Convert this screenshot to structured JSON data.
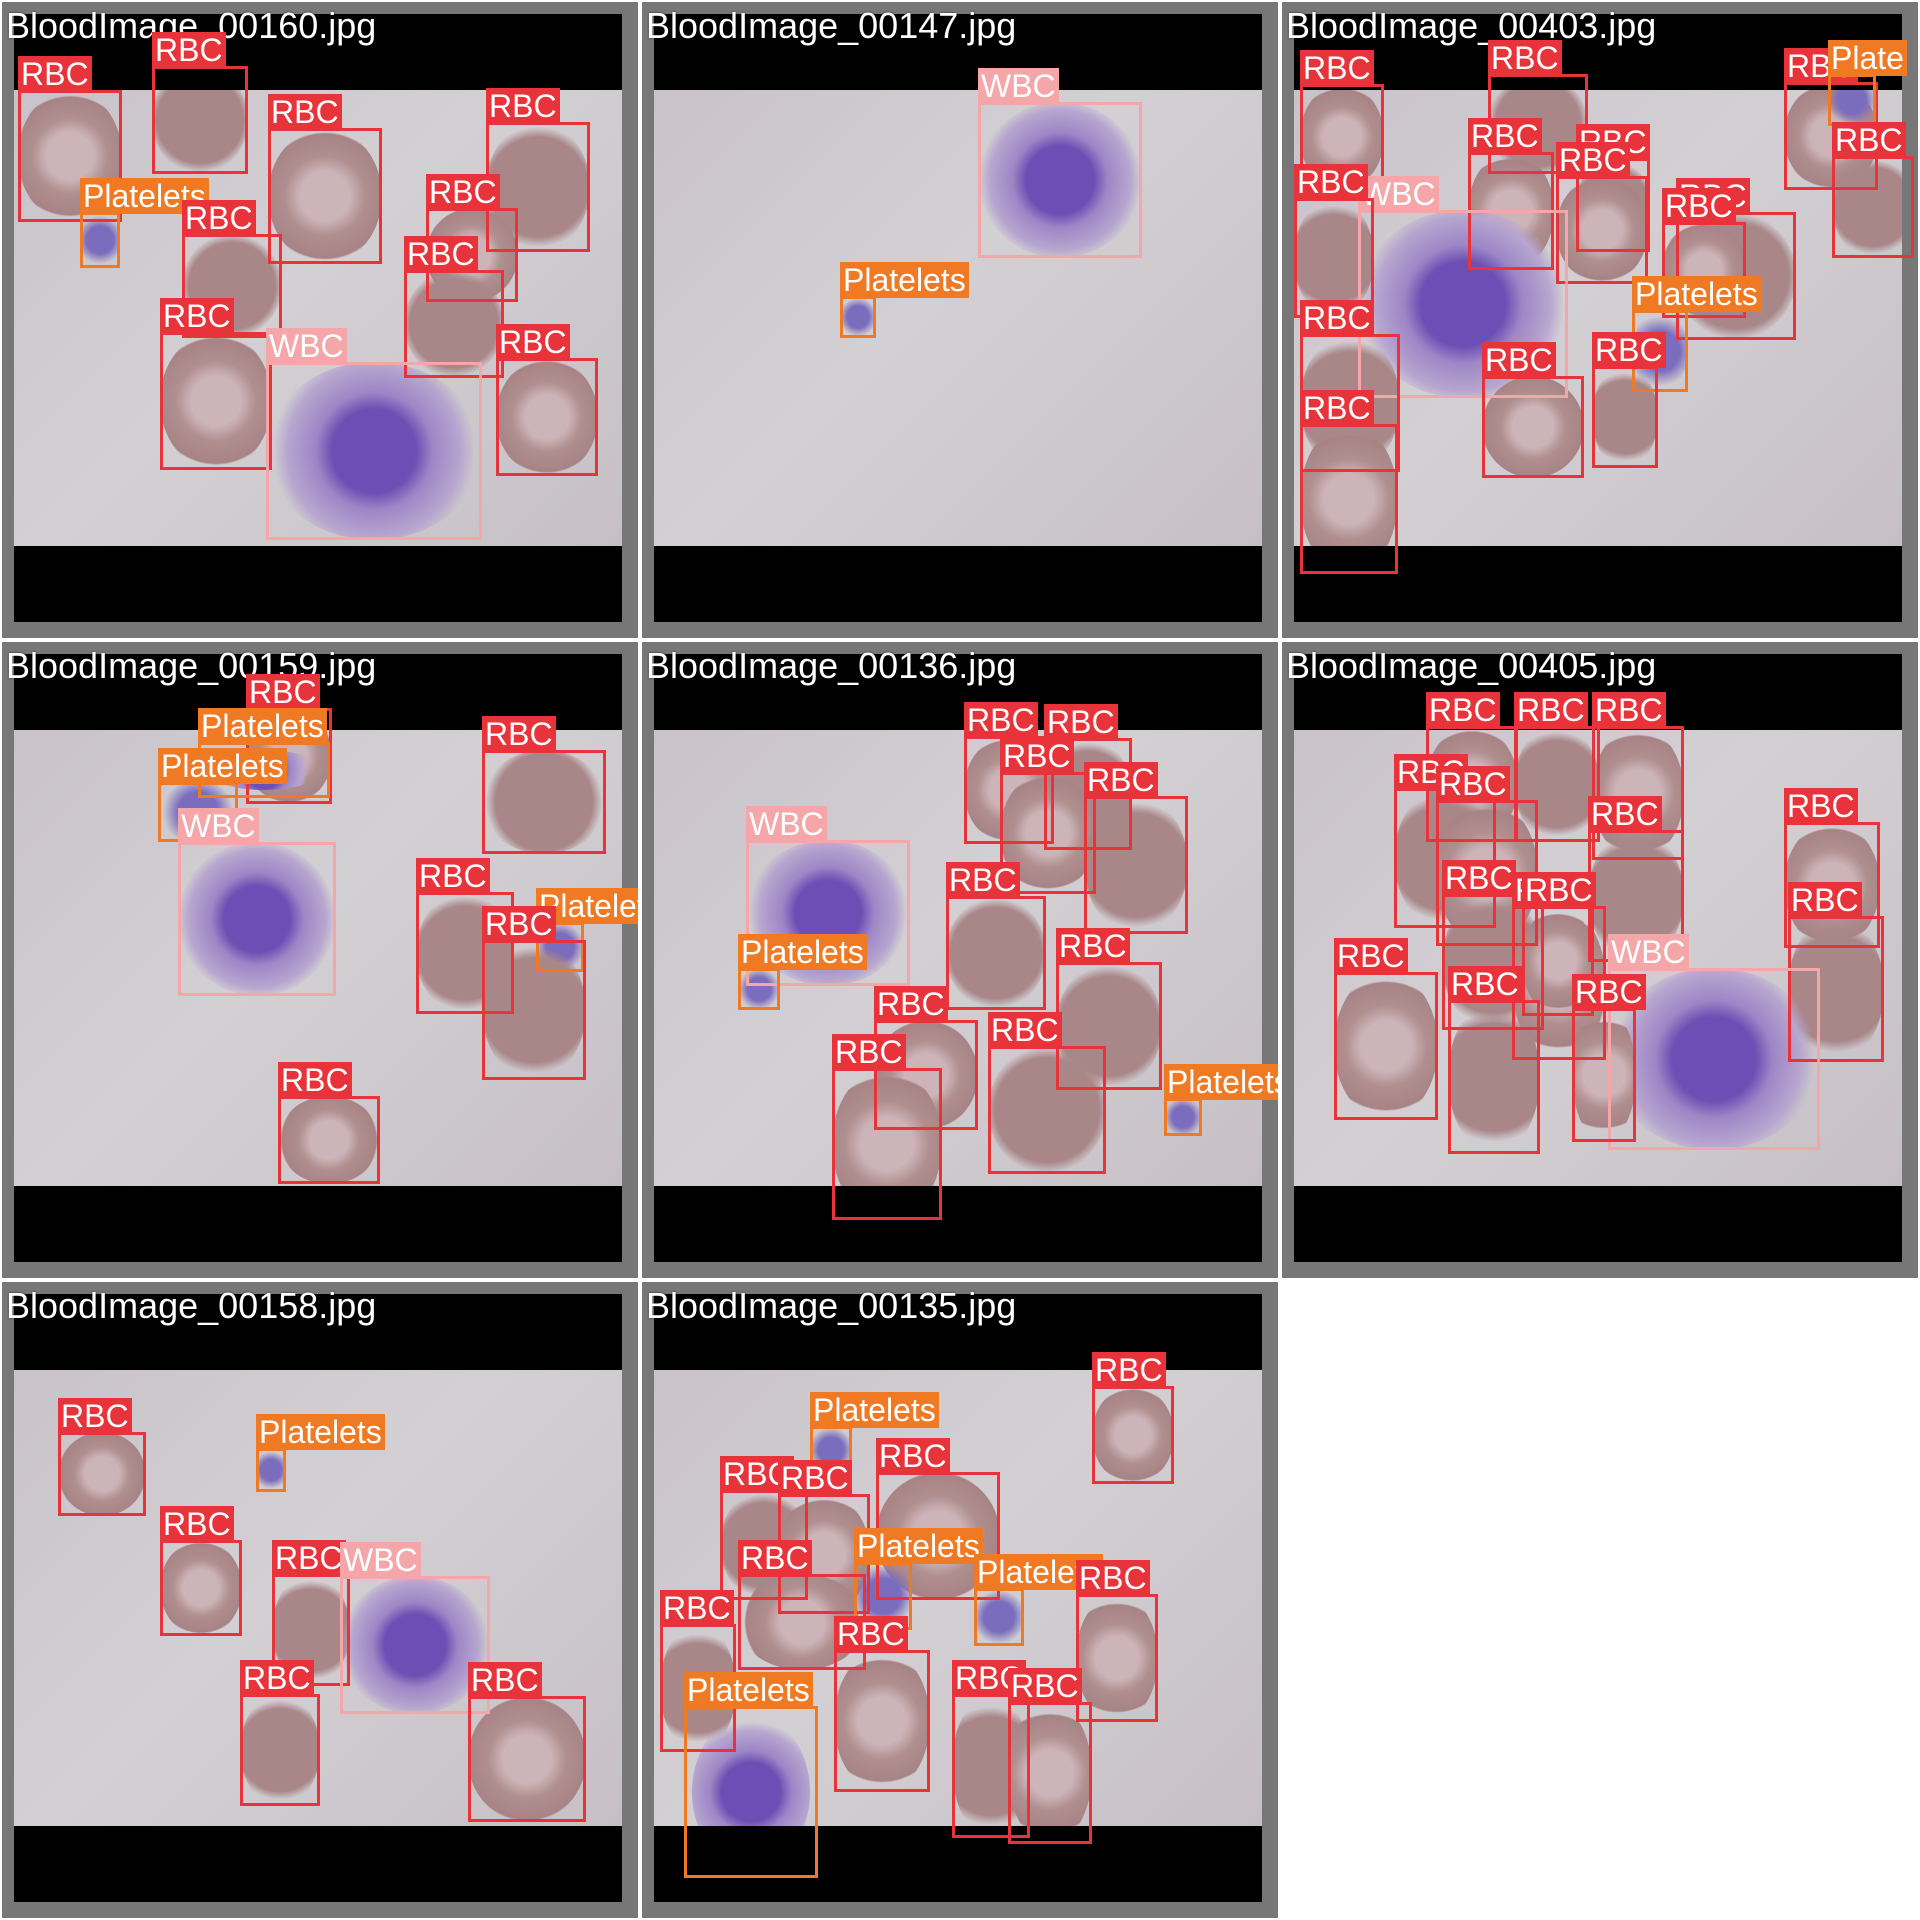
{
  "classes": {
    "RBC": {
      "label": "RBC",
      "color": "#e8333a"
    },
    "WBC": {
      "label": "WBC",
      "color": "#f4a6a8"
    },
    "Platelets": {
      "label": "Platelets",
      "color": "#f07a24"
    }
  },
  "tiles": [
    {
      "filename": "BloodImage_00160.jpg",
      "detections": [
        {
          "cls": "RBC",
          "label": "RBC"
        },
        {
          "cls": "RBC",
          "label": "RBC"
        },
        {
          "cls": "RBC",
          "label": "RBC"
        },
        {
          "cls": "RBC",
          "label": "RBC"
        },
        {
          "cls": "Platelets",
          "label": "Platelets"
        },
        {
          "cls": "RBC",
          "label": "RBC"
        },
        {
          "cls": "RBC",
          "label": "RBC"
        },
        {
          "cls": "RBC",
          "label": "RBC"
        },
        {
          "cls": "RBC",
          "label": "RBC"
        },
        {
          "cls": "WBC",
          "label": "WBC"
        },
        {
          "cls": "RBC",
          "label": "RBC"
        }
      ]
    },
    {
      "filename": "BloodImage_00147.jpg",
      "detections": [
        {
          "cls": "WBC",
          "label": "WBC"
        },
        {
          "cls": "Platelets",
          "label": "Platelets"
        }
      ]
    },
    {
      "filename": "BloodImage_00403.jpg",
      "detections": [
        {
          "cls": "RBC",
          "label": "RBC"
        },
        {
          "cls": "RBC",
          "label": "RBC"
        },
        {
          "cls": "RBC",
          "label": "RBC"
        },
        {
          "cls": "Platelets",
          "label": "Plate"
        },
        {
          "cls": "RBC",
          "label": "RBC"
        },
        {
          "cls": "RBC",
          "label": "RBC"
        },
        {
          "cls": "RBC",
          "label": "RBC"
        },
        {
          "cls": "RBC",
          "label": "RBC"
        },
        {
          "cls": "WBC",
          "label": "WBC"
        },
        {
          "cls": "RBC",
          "label": "RBC"
        },
        {
          "cls": "RBC",
          "label": "RBC"
        },
        {
          "cls": "RBC",
          "label": "RBC"
        },
        {
          "cls": "Platelets",
          "label": "Platelets"
        },
        {
          "cls": "RBC",
          "label": "RBC"
        },
        {
          "cls": "RBC",
          "label": "RBC"
        },
        {
          "cls": "RBC",
          "label": "RBC"
        },
        {
          "cls": "RBC",
          "label": "RBC"
        }
      ]
    },
    {
      "filename": "BloodImage_00159.jpg",
      "detections": [
        {
          "cls": "RBC",
          "label": "RBC"
        },
        {
          "cls": "Platelets",
          "label": "Platelets"
        },
        {
          "cls": "Platelets",
          "label": "Platelets"
        },
        {
          "cls": "RBC",
          "label": "RBC"
        },
        {
          "cls": "WBC",
          "label": "WBC"
        },
        {
          "cls": "RBC",
          "label": "RBC"
        },
        {
          "cls": "Platelets",
          "label": "Platelets"
        },
        {
          "cls": "RBC",
          "label": "RBC"
        },
        {
          "cls": "RBC",
          "label": "RBC"
        }
      ]
    },
    {
      "filename": "BloodImage_00136.jpg",
      "detections": [
        {
          "cls": "RBC",
          "label": "RBC"
        },
        {
          "cls": "RBC",
          "label": "RBC"
        },
        {
          "cls": "RBC",
          "label": "RBC"
        },
        {
          "cls": "RBC",
          "label": "RBC"
        },
        {
          "cls": "WBC",
          "label": "WBC"
        },
        {
          "cls": "RBC",
          "label": "RBC"
        },
        {
          "cls": "Platelets",
          "label": "Platelets"
        },
        {
          "cls": "RBC",
          "label": "RBC"
        },
        {
          "cls": "RBC",
          "label": "RBC"
        },
        {
          "cls": "RBC",
          "label": "RBC"
        },
        {
          "cls": "RBC",
          "label": "RBC"
        },
        {
          "cls": "Platelets",
          "label": "Platelets"
        }
      ]
    },
    {
      "filename": "BloodImage_00405.jpg",
      "detections": [
        {
          "cls": "RBC",
          "label": "RBC"
        },
        {
          "cls": "RBC",
          "label": "RBC"
        },
        {
          "cls": "RBC",
          "label": "RBC"
        },
        {
          "cls": "RBC",
          "label": "RBC"
        },
        {
          "cls": "RBC",
          "label": "RBC"
        },
        {
          "cls": "RBC",
          "label": "RBC"
        },
        {
          "cls": "RBC",
          "label": "RBC"
        },
        {
          "cls": "RBC",
          "label": "RBC"
        },
        {
          "cls": "RBC",
          "label": "RBC"
        },
        {
          "cls": "RBC",
          "label": "RBC"
        },
        {
          "cls": "RBC",
          "label": "RBC"
        },
        {
          "cls": "WBC",
          "label": "WBC"
        },
        {
          "cls": "RBC",
          "label": "RBC"
        },
        {
          "cls": "RBC",
          "label": "RBC"
        },
        {
          "cls": "RBC",
          "label": "RBC"
        }
      ]
    },
    {
      "filename": "BloodImage_00158.jpg",
      "detections": [
        {
          "cls": "RBC",
          "label": "RBC"
        },
        {
          "cls": "Platelets",
          "label": "Platelets"
        },
        {
          "cls": "RBC",
          "label": "RBC"
        },
        {
          "cls": "RBC",
          "label": "RBC"
        },
        {
          "cls": "WBC",
          "label": "WBC"
        },
        {
          "cls": "RBC",
          "label": "RBC"
        },
        {
          "cls": "RBC",
          "label": "RBC"
        }
      ]
    },
    {
      "filename": "BloodImage_00135.jpg",
      "detections": [
        {
          "cls": "RBC",
          "label": "RBC"
        },
        {
          "cls": "Platelets",
          "label": "Platelets"
        },
        {
          "cls": "RBC",
          "label": "RBC"
        },
        {
          "cls": "RBC",
          "label": "RBC"
        },
        {
          "cls": "RBC",
          "label": "RBC"
        },
        {
          "cls": "Platelets",
          "label": "Platelets"
        },
        {
          "cls": "RBC",
          "label": "RBC"
        },
        {
          "cls": "Platelets",
          "label": "Platelets"
        },
        {
          "cls": "RBC",
          "label": "RBC"
        },
        {
          "cls": "RBC",
          "label": "RBC"
        },
        {
          "cls": "RBC",
          "label": "RBC"
        },
        {
          "cls": "RBC",
          "label": "RBC"
        },
        {
          "cls": "RBC",
          "label": "RBC"
        },
        {
          "cls": "Platelets",
          "label": "Platelets"
        }
      ]
    }
  ]
}
